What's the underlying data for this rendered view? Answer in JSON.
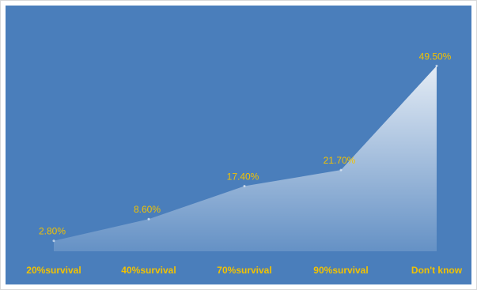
{
  "colors": {
    "background": "#4a7ebb",
    "label": "#f2c200",
    "area": "#ffffff"
  },
  "chart_data": {
    "type": "area",
    "categories": [
      "20%survival",
      "40%survival",
      "70%survival",
      "90%survival",
      "Don't know"
    ],
    "values": [
      2.8,
      8.6,
      17.4,
      21.7,
      49.5
    ],
    "value_labels": [
      "2.80%",
      "8.60%",
      "17.40%",
      "21.70%",
      "49.50%"
    ],
    "ylim": [
      0,
      50
    ],
    "grid": false,
    "legend": "none",
    "title": "",
    "xlabel": "",
    "ylabel": ""
  }
}
